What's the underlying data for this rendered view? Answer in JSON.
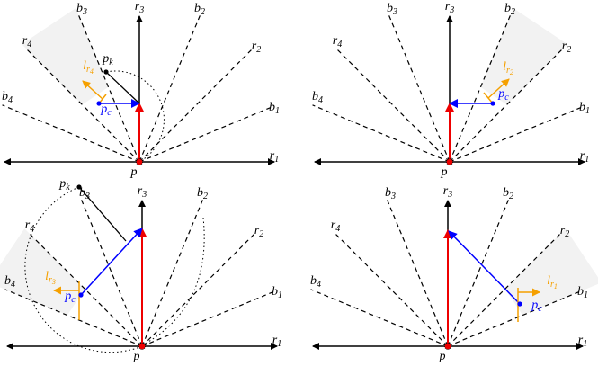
{
  "panels": [
    {
      "labels": [
        {
          "text": "r",
          "sub": "1"
        },
        {
          "text": "r",
          "sub": "2"
        },
        {
          "text": "r",
          "sub": "3"
        },
        {
          "text": "r",
          "sub": "4"
        },
        {
          "text": "b",
          "sub": "1"
        },
        {
          "text": "b",
          "sub": "2"
        },
        {
          "text": "b",
          "sub": "3"
        },
        {
          "text": "b",
          "sub": "4"
        },
        {
          "text": "p"
        },
        {
          "text": "p",
          "sub": "k"
        },
        {
          "text": "p",
          "sub": "c"
        },
        {
          "text": "l",
          "sub": "r",
          "sub2": "4"
        }
      ]
    },
    {
      "labels": [
        {
          "text": "r",
          "sub": "1"
        },
        {
          "text": "r",
          "sub": "2"
        },
        {
          "text": "r",
          "sub": "3"
        },
        {
          "text": "r",
          "sub": "4"
        },
        {
          "text": "b",
          "sub": "1"
        },
        {
          "text": "b",
          "sub": "2"
        },
        {
          "text": "b",
          "sub": "3"
        },
        {
          "text": "b",
          "sub": "4"
        },
        {
          "text": "p"
        },
        {
          "text": "p",
          "sub": "c"
        },
        {
          "text": "l",
          "sub": "r",
          "sub2": "2"
        }
      ]
    },
    {
      "labels": [
        {
          "text": "r",
          "sub": "1"
        },
        {
          "text": "r",
          "sub": "2"
        },
        {
          "text": "r",
          "sub": "3"
        },
        {
          "text": "r",
          "sub": "4"
        },
        {
          "text": "b",
          "sub": "1"
        },
        {
          "text": "b",
          "sub": "2"
        },
        {
          "text": "b",
          "sub": "3"
        },
        {
          "text": "b",
          "sub": "4"
        },
        {
          "text": "p"
        },
        {
          "text": "p",
          "sub": "k"
        },
        {
          "text": "p",
          "sub": "c"
        },
        {
          "text": "l",
          "sub": "r",
          "sub2": "3"
        }
      ]
    },
    {
      "labels": [
        {
          "text": "r",
          "sub": "1"
        },
        {
          "text": "r",
          "sub": "2"
        },
        {
          "text": "r",
          "sub": "3"
        },
        {
          "text": "r",
          "sub": "4"
        },
        {
          "text": "b",
          "sub": "1"
        },
        {
          "text": "b",
          "sub": "2"
        },
        {
          "text": "b",
          "sub": "3"
        },
        {
          "text": "b",
          "sub": "4"
        },
        {
          "text": "p"
        },
        {
          "text": "p",
          "sub": "c"
        },
        {
          "text": "l",
          "sub": "r",
          "sub2": "1"
        }
      ]
    }
  ]
}
